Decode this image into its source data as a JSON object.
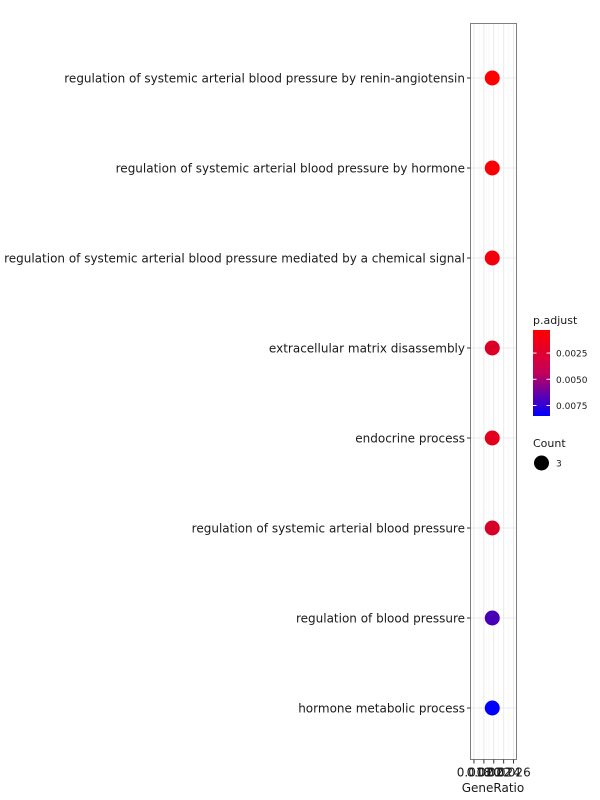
{
  "chart_data": {
    "type": "scatter",
    "title": "",
    "xlabel": "GeneRatio",
    "ylabel": "",
    "x_ticks": [
      "0.018",
      "0.020",
      "0.022",
      "0.024",
      "0.026"
    ],
    "xlim": [
      0.0173,
      0.0266
    ],
    "grid": true,
    "legend_position": "right",
    "categories": [
      "regulation of systemic arterial blood pressure by renin-angiotensin",
      "regulation of systemic arterial blood pressure by hormone",
      "regulation of systemic arterial blood pressure mediated by a chemical signal",
      "extracellular matrix disassembly",
      "endocrine process",
      "regulation of systemic arterial blood pressure",
      "regulation of blood pressure",
      "hormone metabolic process"
    ],
    "points": [
      {
        "term": "regulation of systemic arterial blood pressure by renin-angiotensin",
        "gene_ratio": 0.0217,
        "p_adjust": 0.0003,
        "count": 3
      },
      {
        "term": "regulation of systemic arterial blood pressure by hormone",
        "gene_ratio": 0.0217,
        "p_adjust": 0.0005,
        "count": 3
      },
      {
        "term": "regulation of systemic arterial blood pressure mediated by a chemical signal",
        "gene_ratio": 0.0217,
        "p_adjust": 0.0007,
        "count": 3
      },
      {
        "term": "extracellular matrix disassembly",
        "gene_ratio": 0.0217,
        "p_adjust": 0.0015,
        "count": 3
      },
      {
        "term": "endocrine process",
        "gene_ratio": 0.0217,
        "p_adjust": 0.0012,
        "count": 3
      },
      {
        "term": "regulation of systemic arterial blood pressure",
        "gene_ratio": 0.0217,
        "p_adjust": 0.0016,
        "count": 3
      },
      {
        "term": "regulation of blood pressure",
        "gene_ratio": 0.0217,
        "p_adjust": 0.0062,
        "count": 3
      },
      {
        "term": "hormone metabolic process",
        "gene_ratio": 0.0217,
        "p_adjust": 0.0085,
        "count": 3
      }
    ],
    "legend": {
      "color_title": "p.adjust",
      "color_ticks": [
        {
          "label": "0.0025",
          "value": 0.0025
        },
        {
          "label": "0.0050",
          "value": 0.005
        },
        {
          "label": "0.0075",
          "value": 0.0075
        }
      ],
      "color_range": [
        0.0003,
        0.0085
      ],
      "color_low": "#ff0000",
      "color_high": "#0000ff",
      "size_title": "Count",
      "size_label": "3"
    }
  }
}
